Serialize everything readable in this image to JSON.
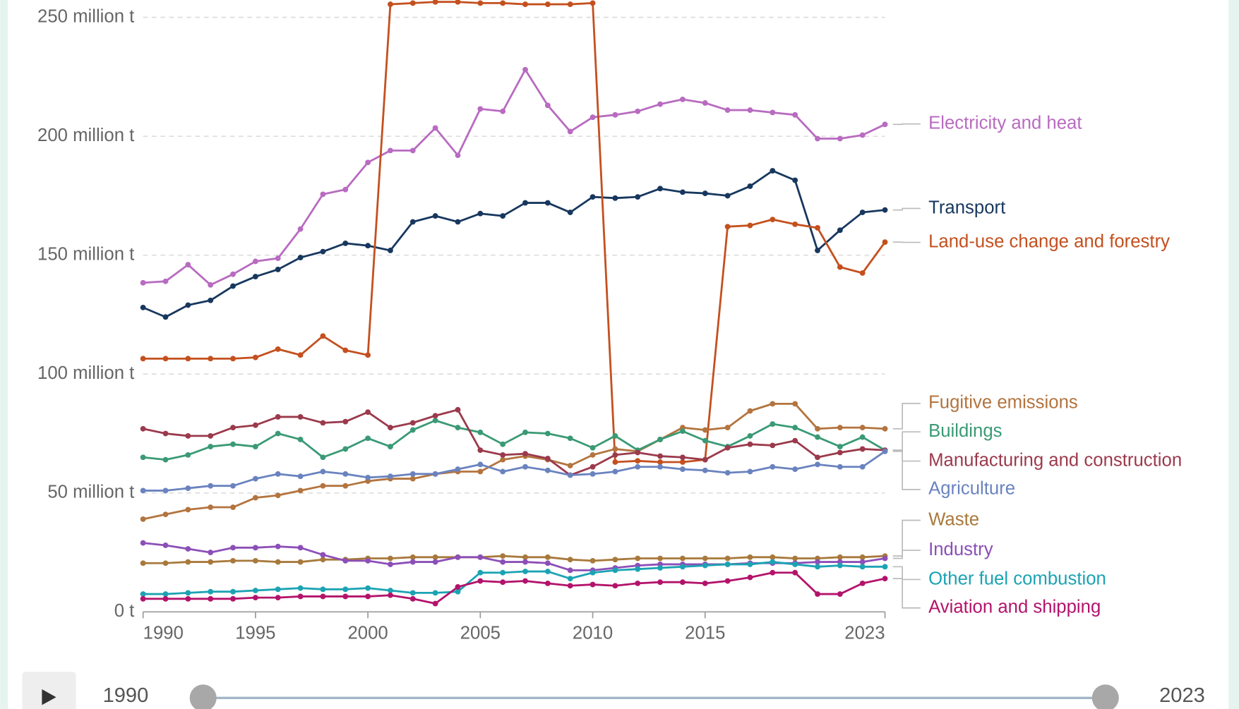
{
  "chart_data": {
    "type": "line",
    "x": [
      1990,
      1991,
      1992,
      1993,
      1994,
      1995,
      1996,
      1997,
      1998,
      1999,
      2000,
      2001,
      2002,
      2003,
      2004,
      2005,
      2006,
      2007,
      2008,
      2009,
      2010,
      2011,
      2012,
      2013,
      2014,
      2015,
      2016,
      2017,
      2018,
      2019,
      2020,
      2021,
      2022,
      2023
    ],
    "xlim": [
      1990,
      2023
    ],
    "xticks": [
      1990,
      1995,
      2000,
      2005,
      2010,
      2015,
      2023
    ],
    "ylim": [
      0,
      250
    ],
    "yticks": [
      {
        "value": 0,
        "label": "0 t"
      },
      {
        "value": 50,
        "label": "50 million t"
      },
      {
        "value": 100,
        "label": "100 million t"
      },
      {
        "value": 150,
        "label": "150 million t"
      },
      {
        "value": 200,
        "label": "200 million t"
      },
      {
        "value": 250,
        "label": "250 million t"
      }
    ],
    "grid": true,
    "series": [
      {
        "name": "Electricity and heat",
        "color": "#b86bc0",
        "values": [
          138.4,
          139,
          146,
          137.5,
          142,
          147.4,
          148.7,
          161,
          175.6,
          177.6,
          189,
          194,
          194,
          203.5,
          192,
          211.5,
          210.5,
          228,
          213,
          202,
          208,
          209,
          210.5,
          213.5,
          215.5,
          214,
          211,
          211,
          210,
          209,
          199,
          199,
          200.5,
          205
        ]
      },
      {
        "name": "Transport",
        "color": "#17375e",
        "values": [
          128,
          124,
          129,
          131,
          137,
          141,
          144,
          149,
          151.5,
          155,
          154,
          152,
          164,
          166.5,
          164,
          167.5,
          166.5,
          172,
          172,
          168,
          174.5,
          174,
          174.5,
          178,
          176.5,
          176,
          175,
          179,
          185.5,
          181.5,
          152,
          160.5,
          168,
          169
        ]
      },
      {
        "name": "Land-use change and forestry",
        "color": "#c4501e",
        "values": [
          106.5,
          106.5,
          106.5,
          106.5,
          106.5,
          107,
          110.5,
          108,
          116,
          110,
          108,
          255.5,
          256,
          256.5,
          256.5,
          256,
          256,
          255.5,
          255.5,
          255.5,
          256,
          63,
          63.5,
          63,
          63,
          64,
          162,
          162.5,
          165,
          163,
          161.5,
          145,
          142.5,
          155.5
        ]
      },
      {
        "name": "Fugitive emissions",
        "color": "#b3743f",
        "values": [
          39,
          41,
          43,
          44,
          44,
          48,
          49,
          51,
          53,
          53,
          55,
          56,
          56,
          58,
          59,
          59,
          64,
          65.5,
          64,
          61.5,
          66,
          68.5,
          67.5,
          72.5,
          77.5,
          76.5,
          77.5,
          84.5,
          87.5,
          87.5,
          77,
          77.5,
          77.5,
          77
        ]
      },
      {
        "name": "Buildings",
        "color": "#3a9a76",
        "values": [
          65,
          64,
          66,
          69.5,
          70.5,
          69.5,
          75,
          72.5,
          65,
          68.5,
          73,
          69.5,
          76.5,
          80.5,
          77.5,
          75.5,
          70.5,
          75.5,
          75,
          73,
          69,
          74,
          68,
          72.5,
          76,
          72,
          69.5,
          74,
          79,
          77.5,
          73.5,
          69.5,
          73.5,
          68
        ]
      },
      {
        "name": "Manufacturing and construction",
        "color": "#9b3a4c",
        "values": [
          77,
          75,
          74,
          74,
          77.5,
          78.5,
          82,
          82,
          79.5,
          80,
          84,
          77.5,
          79.5,
          82.5,
          85,
          68,
          66,
          66.5,
          64.5,
          57.5,
          61,
          66,
          67,
          65.5,
          65,
          64,
          69,
          70.5,
          70,
          72,
          65,
          67,
          68.5,
          68
        ]
      },
      {
        "name": "Agriculture",
        "color": "#6a83bf",
        "values": [
          51,
          51,
          52,
          53,
          53,
          56,
          58,
          57,
          59,
          58,
          56.5,
          57,
          58,
          58,
          60,
          62,
          59,
          61,
          59.5,
          57.5,
          58,
          59,
          61,
          61,
          60,
          59.5,
          58.5,
          59,
          61,
          60,
          62,
          61,
          61,
          67.5
        ]
      },
      {
        "name": "Waste",
        "color": "#a8793b",
        "values": [
          20.5,
          20.5,
          21,
          21,
          21.5,
          21.5,
          21,
          21,
          22,
          22,
          22.5,
          22.5,
          23,
          23,
          23,
          23,
          23.5,
          23,
          23,
          22,
          21.5,
          22,
          22.5,
          22.5,
          22.5,
          22.5,
          22.5,
          23,
          23,
          22.5,
          22.5,
          23,
          23,
          23.5
        ]
      },
      {
        "name": "Industry",
        "color": "#8c4fb8",
        "values": [
          29,
          28,
          26.5,
          25,
          27,
          27,
          27.5,
          27,
          24,
          21.5,
          21.5,
          20,
          21,
          21,
          23,
          23,
          21,
          21,
          20.5,
          17.5,
          17.5,
          18.5,
          19.5,
          20,
          20,
          20,
          20,
          20.5,
          20.5,
          20.5,
          21,
          21,
          21,
          22.5
        ]
      },
      {
        "name": "Other fuel combustion",
        "color": "#1ba3b3",
        "values": [
          7.5,
          7.5,
          8,
          8.5,
          8.5,
          9,
          9.5,
          10,
          9.5,
          9.5,
          10,
          9,
          8,
          8,
          8.5,
          16.5,
          16.5,
          17,
          17,
          14,
          16.5,
          17.5,
          18,
          18.5,
          19,
          19.5,
          20,
          20,
          21,
          20,
          19,
          19.5,
          19,
          19
        ]
      },
      {
        "name": "Aviation and shipping",
        "color": "#b3136b",
        "values": [
          5.5,
          5.5,
          5.5,
          5.5,
          5.5,
          6,
          6,
          6.5,
          6.5,
          6.5,
          6.5,
          7,
          5.5,
          3.5,
          10.5,
          13,
          12.5,
          13,
          12,
          11,
          11.5,
          11,
          12,
          12.5,
          12.5,
          12,
          13,
          14.5,
          16.5,
          16.5,
          7.5,
          7.5,
          12,
          14
        ]
      }
    ]
  },
  "timeline": {
    "start": "1990",
    "end": "2023"
  }
}
